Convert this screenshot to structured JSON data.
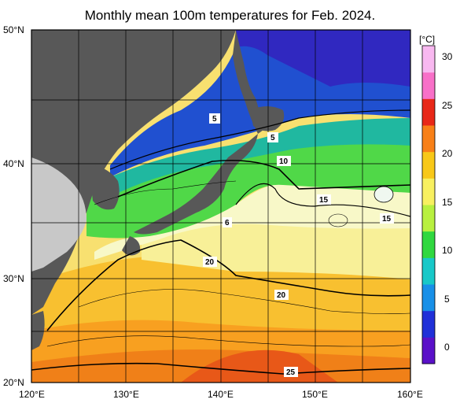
{
  "title": "Monthly mean 100m temperatures for Feb. 2024.",
  "axes": {
    "lat_labels": [
      "50°N",
      "40°N",
      "30°N",
      "20°N"
    ],
    "lon_labels": [
      "120°E",
      "130°E",
      "140°E",
      "150°E",
      "160°E"
    ]
  },
  "colorbar": {
    "unit": "[°C]",
    "ticks": [
      "30",
      "25",
      "20",
      "15",
      "10",
      "5",
      "0"
    ],
    "colors": [
      "#5a10c8",
      "#2030d8",
      "#1890e8",
      "#18c8c8",
      "#30d840",
      "#b8f040",
      "#f8f060",
      "#f8c818",
      "#f88018",
      "#e82818",
      "#f870c8",
      "#f8b8f0"
    ]
  },
  "contour_labels": [
    "5",
    "5",
    "10",
    "15",
    "15",
    "6",
    "20",
    "20",
    "25"
  ],
  "colors": {
    "land": "#585858",
    "land_light": "#c8c8c8",
    "grid": "#000000"
  }
}
